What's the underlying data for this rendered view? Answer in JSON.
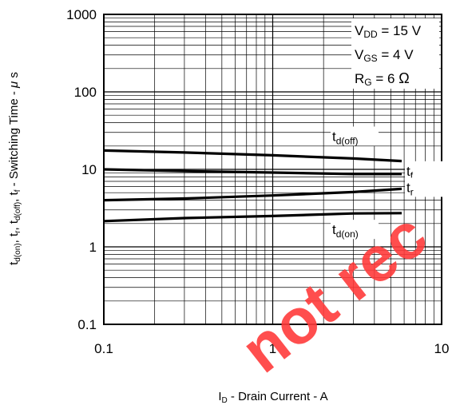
{
  "chart_data": {
    "type": "line",
    "x_scale": "log",
    "y_scale": "log",
    "xlim": [
      0.1,
      10
    ],
    "ylim": [
      0.1,
      1000
    ],
    "grid": true,
    "x_ticks": [
      "0.1",
      "1",
      "10"
    ],
    "y_ticks": [
      "1000",
      "100",
      "10",
      "1",
      "0.1"
    ],
    "xlabel": {
      "main": "I",
      "sub": "D",
      "rest": " - Drain Current - A"
    },
    "ylabel": {
      "p1": "t",
      "s1": "d(on)",
      "p2": ", t",
      "s2": "r",
      "p3": ", t",
      "s3": "d(off)",
      "p4": ", t",
      "s4": "f",
      "p5": " - Switching Time - ",
      "mu": "μ",
      "p6": " s"
    },
    "conditions": [
      {
        "main": "V",
        "sub": "DD",
        "rest": " = 15 V"
      },
      {
        "main": "V",
        "sub": "GS",
        "rest": " = 4 V"
      },
      {
        "main": "R",
        "sub": "G",
        "rest": " = 6 ",
        "unit": "Ω"
      }
    ],
    "series": [
      {
        "name": {
          "main": "t",
          "sub": "d(off)"
        },
        "x": [
          0.1,
          0.3,
          1,
          3,
          5.8
        ],
        "y": [
          17.5,
          16.5,
          15.2,
          13.8,
          12.8
        ]
      },
      {
        "name": {
          "main": "t",
          "sub": "f"
        },
        "x": [
          0.1,
          0.3,
          1,
          3,
          5.8
        ],
        "y": [
          10,
          9.5,
          9.1,
          8.7,
          8.7
        ]
      },
      {
        "name": {
          "main": "t",
          "sub": "r"
        },
        "x": [
          0.1,
          0.3,
          1,
          3,
          5.8
        ],
        "y": [
          4.0,
          4.2,
          4.6,
          5.1,
          5.6
        ]
      },
      {
        "name": {
          "main": "t",
          "sub": "d(on)"
        },
        "x": [
          0.1,
          0.3,
          1,
          3,
          5.8
        ],
        "y": [
          2.15,
          2.35,
          2.5,
          2.7,
          2.72
        ]
      }
    ],
    "line_color": "#000000",
    "watermark": {
      "text": "not rec",
      "color": "#ff3b3b"
    }
  }
}
